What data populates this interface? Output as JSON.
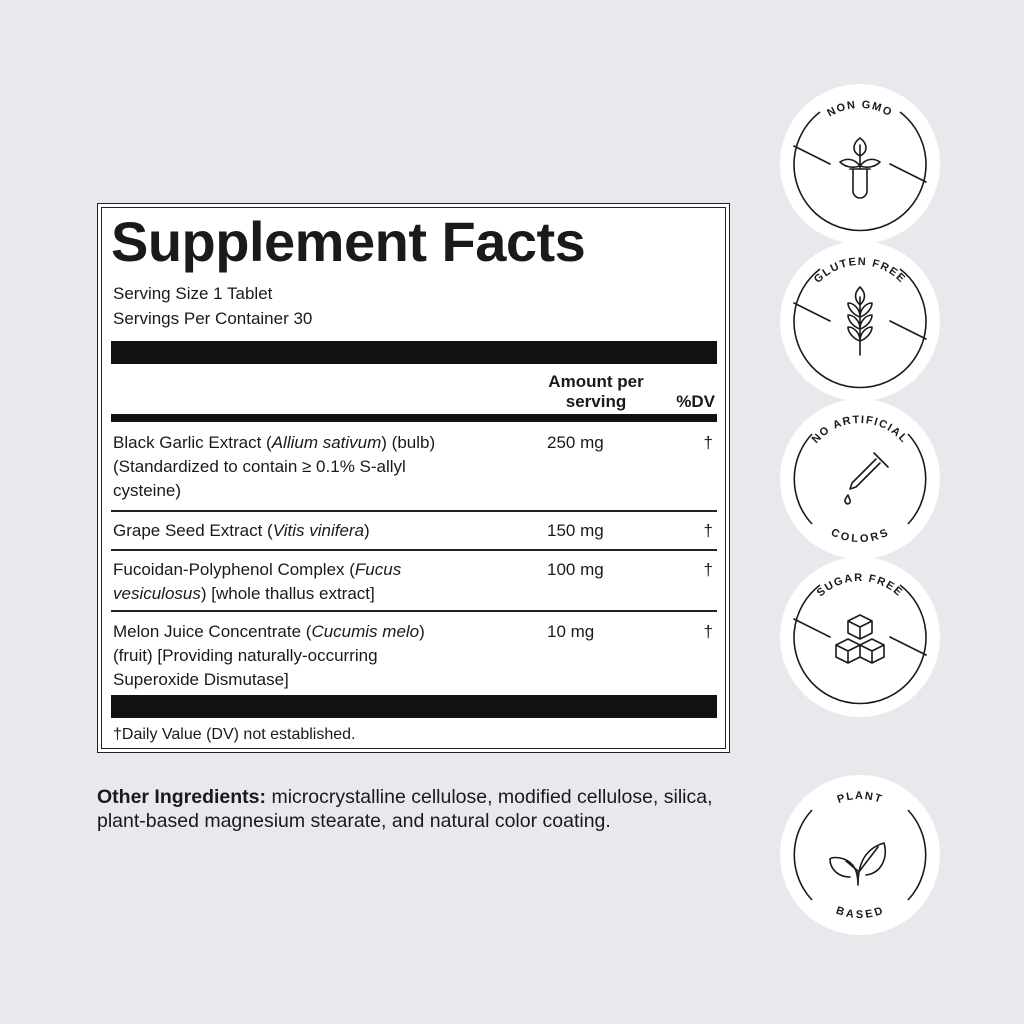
{
  "facts": {
    "title": "Supplement Facts",
    "serving_size": "Serving Size 1 Tablet",
    "servings_per_container": "Servings Per Container 30",
    "header_amount_line1": "Amount per",
    "header_amount_line2": "serving",
    "header_dv": "%DV",
    "rows": [
      {
        "lines": [
          [
            "Black Garlic Extract (",
            "Allium sativum",
            ") (bulb)"
          ],
          [
            "(Standardized to contain ≥ 0.1% S-allyl"
          ],
          [
            "cysteine)"
          ]
        ],
        "amount": "250 mg",
        "dv": "†"
      },
      {
        "lines": [
          [
            "Grape Seed Extract (",
            "Vitis vinifera",
            ")"
          ]
        ],
        "amount": "150 mg",
        "dv": "†"
      },
      {
        "lines": [
          [
            "Fucoidan-Polyphenol Complex (",
            "Fucus",
            ""
          ],
          [
            "",
            "vesiculosus",
            ") [whole thallus extract]"
          ]
        ],
        "amount": "100 mg",
        "dv": "†"
      },
      {
        "lines": [
          [
            "Melon Juice Concentrate (",
            "Cucumis melo",
            ")"
          ],
          [
            "(fruit) [Providing naturally-occurring"
          ],
          [
            "Superoxide Dismutase]"
          ]
        ],
        "amount": "10 mg",
        "dv": "†"
      }
    ],
    "footnote": "†Daily Value (DV) not established."
  },
  "other_ingredients": {
    "label": "Other Ingredients:",
    "text": " microcrystalline cellulose, modified cellulose, silica, plant-based magnesium stearate, and natural color coating."
  },
  "badges": [
    {
      "top": "NON GMO",
      "bottom": "",
      "icon": "plant-test-tube-icon"
    },
    {
      "top": "GLUTEN FREE",
      "bottom": "",
      "icon": "wheat-icon"
    },
    {
      "top": "NO ARTIFICIAL",
      "bottom": "COLORS",
      "icon": "dropper-icon"
    },
    {
      "top": "SUGAR FREE",
      "bottom": "",
      "icon": "sugar-cubes-icon"
    },
    {
      "top": "PLANT",
      "bottom": "BASED",
      "icon": "leaves-icon"
    }
  ],
  "colors": {
    "background": "#e8e9ec",
    "ink": "#1a1a1a",
    "badge": "#ffffff"
  }
}
